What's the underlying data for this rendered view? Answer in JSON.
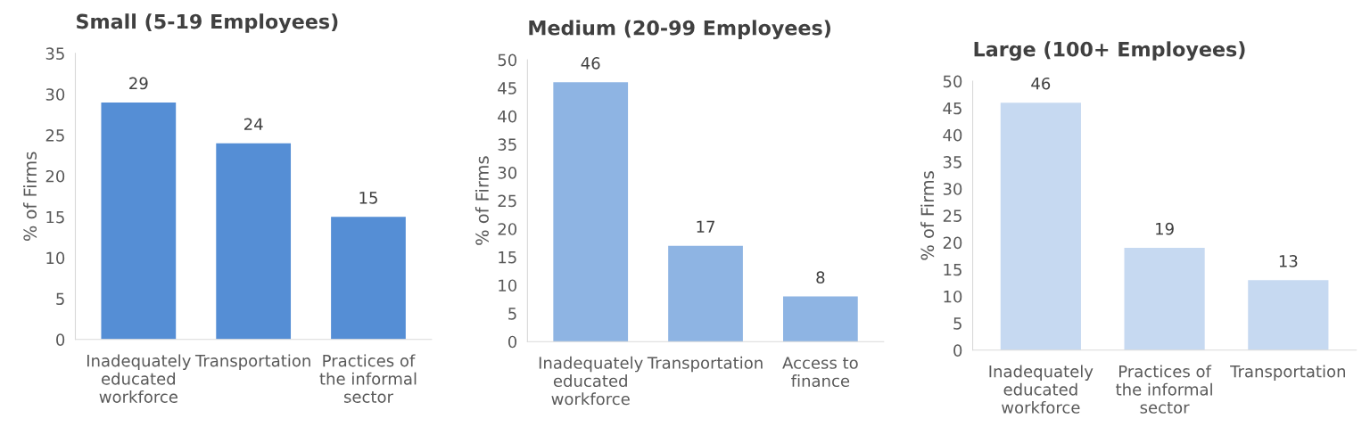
{
  "chart_data": [
    {
      "type": "bar",
      "title": "Small (5-19 Employees)",
      "ylabel": "% of Firms",
      "categories": [
        "Inadequately educated workforce",
        "Transportation",
        "Practices of the informal sector"
      ],
      "values": [
        29,
        24,
        15
      ],
      "color": "#558ed5",
      "ylim": [
        0,
        35
      ],
      "yticks": [
        0,
        5,
        10,
        15,
        20,
        25,
        30,
        35
      ],
      "data_labels": true
    },
    {
      "type": "bar",
      "title": "Medium (20-99 Employees)",
      "ylabel": "% of Firms",
      "categories": [
        "Inadequately educated workforce",
        "Transportation",
        "Access to finance"
      ],
      "values": [
        46,
        17,
        8
      ],
      "color": "#8eb4e3",
      "ylim": [
        0,
        50
      ],
      "yticks": [
        0,
        5,
        10,
        15,
        20,
        25,
        30,
        35,
        40,
        45,
        50
      ],
      "data_labels": true
    },
    {
      "type": "bar",
      "title": "Large (100+ Employees)",
      "ylabel": "% of Firms",
      "categories": [
        "Inadequately educated workforce",
        "Practices of the informal sector",
        "Transportation"
      ],
      "values": [
        46,
        19,
        13
      ],
      "color": "#c6d9f1",
      "ylim": [
        0,
        50
      ],
      "yticks": [
        0,
        5,
        10,
        15,
        20,
        25,
        30,
        35,
        40,
        45,
        50
      ],
      "data_labels": true
    }
  ]
}
